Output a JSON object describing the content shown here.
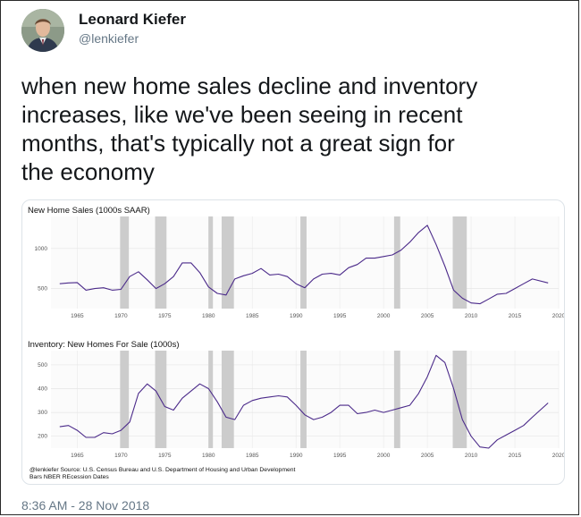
{
  "profile": {
    "name": "Leonard Kiefer",
    "handle": "@lenkiefer"
  },
  "tweet": {
    "text_lines": [
      "when new home sales decline and inventory",
      "increases, like we've been seeing in recent",
      "months, that's typically not a great sign for",
      "the economy"
    ],
    "timestamp": "8:36 AM - 28 Nov 2018"
  },
  "chart_data": [
    {
      "type": "line",
      "title": "New Home Sales (1000s SAAR)",
      "xlabel": "",
      "ylabel": "",
      "xlim": [
        1962,
        2020
      ],
      "ylim": [
        250,
        1400
      ],
      "xticks": [
        1965,
        1970,
        1975,
        1980,
        1985,
        1990,
        1995,
        2000,
        2005,
        2010,
        2015,
        2020
      ],
      "yticks": [
        500,
        1000
      ],
      "grid": true,
      "series_color": "#4b2a8a",
      "recession_color": "#cccccc",
      "recessions": [
        [
          1969.9,
          1970.9
        ],
        [
          1973.9,
          1975.2
        ],
        [
          1980.0,
          1980.5
        ],
        [
          1981.5,
          1982.9
        ],
        [
          1990.5,
          1991.2
        ],
        [
          2001.2,
          2001.9
        ],
        [
          2007.9,
          2009.5
        ]
      ],
      "series": [
        {
          "x": [
            1963,
            1964,
            1965,
            1966,
            1967,
            1968,
            1969,
            1970,
            1971,
            1972,
            1973,
            1974,
            1975,
            1976,
            1977,
            1978,
            1979,
            1980,
            1981,
            1982,
            1983,
            1984,
            1985,
            1986,
            1987,
            1988,
            1989,
            1990,
            1991,
            1992,
            1993,
            1994,
            1995,
            1996,
            1997,
            1998,
            1999,
            2000,
            2001,
            2002,
            2003,
            2004,
            2005,
            2006,
            2007,
            2008,
            2009,
            2010,
            2011,
            2012,
            2013,
            2014,
            2015,
            2016,
            2017,
            2018.8
          ],
          "values": [
            560,
            570,
            575,
            480,
            500,
            510,
            480,
            490,
            650,
            710,
            610,
            500,
            560,
            650,
            820,
            820,
            700,
            520,
            440,
            420,
            620,
            660,
            690,
            750,
            670,
            680,
            650,
            560,
            510,
            620,
            680,
            690,
            670,
            760,
            800,
            880,
            880,
            900,
            920,
            980,
            1080,
            1200,
            1290,
            1050,
            780,
            480,
            380,
            320,
            310,
            370,
            430,
            440,
            500,
            560,
            620,
            570
          ]
        }
      ]
    },
    {
      "type": "line",
      "title": "Inventory: New Homes For Sale (1000s)",
      "xlabel": "",
      "ylabel": "",
      "xlim": [
        1962,
        2020
      ],
      "ylim": [
        150,
        560
      ],
      "xticks": [
        1965,
        1970,
        1975,
        1980,
        1985,
        1990,
        1995,
        2000,
        2005,
        2010,
        2015,
        2020
      ],
      "yticks": [
        200,
        300,
        400,
        500
      ],
      "grid": true,
      "series_color": "#4b2a8a",
      "recession_color": "#cccccc",
      "recessions": [
        [
          1969.9,
          1970.9
        ],
        [
          1973.9,
          1975.2
        ],
        [
          1980.0,
          1980.5
        ],
        [
          1981.5,
          1982.9
        ],
        [
          1990.5,
          1991.2
        ],
        [
          2001.2,
          2001.9
        ],
        [
          2007.9,
          2009.5
        ]
      ],
      "series": [
        {
          "x": [
            1963,
            1964,
            1965,
            1966,
            1967,
            1968,
            1969,
            1970,
            1971,
            1972,
            1973,
            1974,
            1975,
            1976,
            1977,
            1978,
            1979,
            1980,
            1981,
            1982,
            1983,
            1984,
            1985,
            1986,
            1987,
            1988,
            1989,
            1990,
            1991,
            1992,
            1993,
            1994,
            1995,
            1996,
            1997,
            1998,
            1999,
            2000,
            2001,
            2002,
            2003,
            2004,
            2005,
            2006,
            2007,
            2008,
            2009,
            2010,
            2011,
            2012,
            2013,
            2014,
            2015,
            2016,
            2017,
            2018.8
          ],
          "values": [
            240,
            245,
            225,
            195,
            195,
            215,
            210,
            225,
            260,
            380,
            420,
            390,
            325,
            310,
            360,
            390,
            420,
            400,
            345,
            280,
            270,
            330,
            350,
            360,
            365,
            370,
            365,
            330,
            290,
            270,
            280,
            300,
            330,
            330,
            295,
            300,
            310,
            300,
            310,
            320,
            330,
            380,
            450,
            540,
            510,
            400,
            270,
            200,
            155,
            150,
            185,
            205,
            225,
            245,
            280,
            340
          ]
        }
      ]
    }
  ],
  "source": {
    "line1": "@lenkiefer Source: U.S. Census Bureau and U.S. Department of Housing and Urban Development",
    "line2": "Bars NBER REcession Dates"
  }
}
